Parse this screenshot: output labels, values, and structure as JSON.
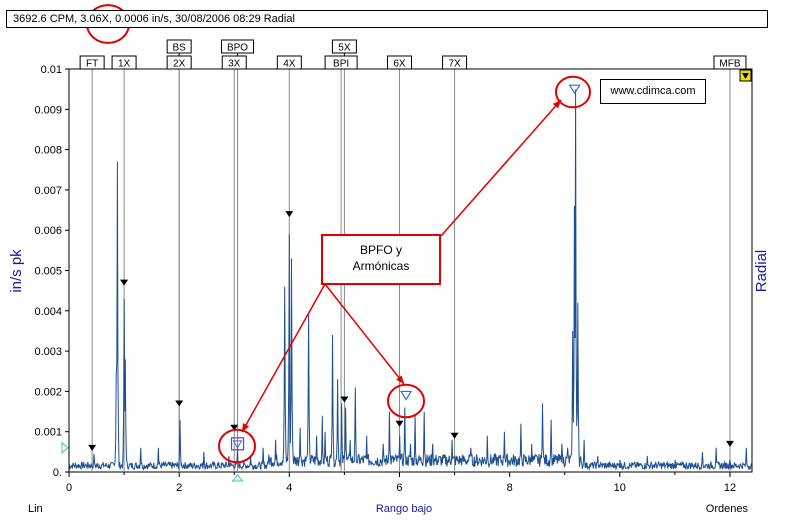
{
  "header": {
    "readout": "3692.6 CPM, 3.06X, 0.0006 in/s, 30/08/2006 08:29  Radial"
  },
  "watermark": "www.cdimca.com",
  "callout": {
    "line1": "BPFO y",
    "line2": "Armónicas"
  },
  "corner_labels": {
    "scale": "Lin",
    "x_unit": "Ordenes"
  },
  "colors": {
    "spectrum": "#1f4f8f",
    "axis_title": "#1a1aa0",
    "annotation": "#e00000",
    "marker_line": "#888888",
    "background": "#ffffff"
  },
  "chart_data": {
    "type": "line",
    "title": "",
    "xlabel": "Rango bajo",
    "ylabel": "in/s pk",
    "right_label": "Radial",
    "xlim": [
      0,
      12.4
    ],
    "ylim": [
      0,
      0.01
    ],
    "x_ticks": [
      "0",
      "2",
      "4",
      "6",
      "8",
      "10",
      "12"
    ],
    "y_ticks": [
      "0.",
      "0.001",
      "0.002",
      "0.003",
      "0.004",
      "0.005",
      "0.006",
      "0.007",
      "0.008",
      "0.009",
      "0.01"
    ],
    "y_tick_values": [
      0,
      0.001,
      0.002,
      0.003,
      0.004,
      0.005,
      0.006,
      0.007,
      0.008,
      0.009,
      0.01
    ],
    "order_markers": [
      {
        "label": "FT",
        "x": 0.42,
        "row": 1
      },
      {
        "label": "1X",
        "x": 1.0,
        "row": 1
      },
      {
        "label": "BS",
        "x": 2.0,
        "row": 0
      },
      {
        "label": "2X",
        "x": 2.0,
        "row": 1
      },
      {
        "label": "BPO",
        "x": 3.06,
        "row": 0
      },
      {
        "label": "3X",
        "x": 3.0,
        "row": 1
      },
      {
        "label": "4X",
        "x": 4.0,
        "row": 1
      },
      {
        "label": "5X",
        "x": 5.0,
        "row": 0
      },
      {
        "label": "BPI",
        "x": 4.94,
        "row": 1
      },
      {
        "label": "6X",
        "x": 6.0,
        "row": 1
      },
      {
        "label": "7X",
        "x": 7.0,
        "row": 1
      },
      {
        "label": "MFB",
        "x": 12.0,
        "row": 1
      }
    ],
    "peaks": [
      {
        "x": 0.88,
        "y": 0.0077
      },
      {
        "x": 0.86,
        "y": 0.0024
      },
      {
        "x": 1.0,
        "y": 0.0043
      },
      {
        "x": 1.02,
        "y": 0.0028
      },
      {
        "x": 0.45,
        "y": 0.00045
      },
      {
        "x": 1.3,
        "y": 0.0006
      },
      {
        "x": 1.62,
        "y": 0.0006
      },
      {
        "x": 2.02,
        "y": 0.0013
      },
      {
        "x": 2.45,
        "y": 0.0005
      },
      {
        "x": 2.9,
        "y": 0.0004
      },
      {
        "x": 3.06,
        "y": 0.0006
      },
      {
        "x": 3.3,
        "y": 0.0004
      },
      {
        "x": 3.52,
        "y": 0.0006
      },
      {
        "x": 3.75,
        "y": 0.0008
      },
      {
        "x": 3.92,
        "y": 0.0046
      },
      {
        "x": 4.0,
        "y": 0.0059
      },
      {
        "x": 4.04,
        "y": 0.0053
      },
      {
        "x": 4.2,
        "y": 0.0011
      },
      {
        "x": 4.35,
        "y": 0.0039
      },
      {
        "x": 4.5,
        "y": 0.0009
      },
      {
        "x": 4.6,
        "y": 0.0014
      },
      {
        "x": 4.65,
        "y": 0.001
      },
      {
        "x": 4.78,
        "y": 0.0034
      },
      {
        "x": 4.88,
        "y": 0.0023
      },
      {
        "x": 4.95,
        "y": 0.0017
      },
      {
        "x": 5.02,
        "y": 0.0016
      },
      {
        "x": 5.1,
        "y": 0.0008
      },
      {
        "x": 5.2,
        "y": 0.0021
      },
      {
        "x": 5.4,
        "y": 0.0009
      },
      {
        "x": 5.7,
        "y": 0.0007
      },
      {
        "x": 5.82,
        "y": 0.0015
      },
      {
        "x": 6.0,
        "y": 0.0009
      },
      {
        "x": 6.1,
        "y": 0.0016
      },
      {
        "x": 6.2,
        "y": 0.0007
      },
      {
        "x": 6.28,
        "y": 0.0014
      },
      {
        "x": 6.45,
        "y": 0.0015
      },
      {
        "x": 6.6,
        "y": 0.0007
      },
      {
        "x": 6.95,
        "y": 0.0008
      },
      {
        "x": 7.3,
        "y": 0.0006
      },
      {
        "x": 7.6,
        "y": 0.0009
      },
      {
        "x": 7.9,
        "y": 0.001
      },
      {
        "x": 8.2,
        "y": 0.0012
      },
      {
        "x": 8.4,
        "y": 0.0007
      },
      {
        "x": 8.6,
        "y": 0.0017
      },
      {
        "x": 8.75,
        "y": 0.0013
      },
      {
        "x": 8.95,
        "y": 0.0007
      },
      {
        "x": 9.05,
        "y": 0.0006
      },
      {
        "x": 9.15,
        "y": 0.0035
      },
      {
        "x": 9.18,
        "y": 0.0066
      },
      {
        "x": 9.2,
        "y": 0.0095
      },
      {
        "x": 9.24,
        "y": 0.0042
      },
      {
        "x": 9.35,
        "y": 0.0008
      },
      {
        "x": 9.6,
        "y": 0.0004
      },
      {
        "x": 10.0,
        "y": 0.0003
      },
      {
        "x": 10.5,
        "y": 0.0004
      },
      {
        "x": 11.0,
        "y": 0.0003
      },
      {
        "x": 11.5,
        "y": 0.0005
      },
      {
        "x": 11.75,
        "y": 0.0006
      },
      {
        "x": 12.0,
        "y": 0.0003
      },
      {
        "x": 12.3,
        "y": 0.0006
      }
    ],
    "noise_floor": 0.0002,
    "fault_marks": [
      {
        "x": 0.42,
        "y": 0.0004
      },
      {
        "x": 1.0,
        "y": 0.0045
      },
      {
        "x": 2.0,
        "y": 0.0015
      },
      {
        "x": 3.0,
        "y": 0.0009
      },
      {
        "x": 4.0,
        "y": 0.0062
      },
      {
        "x": 5.0,
        "y": 0.0016
      },
      {
        "x": 6.0,
        "y": 0.001
      },
      {
        "x": 7.0,
        "y": 0.0007
      },
      {
        "x": 12.0,
        "y": 0.0005
      }
    ],
    "cursors": [
      {
        "x": 3.06,
        "y": 0.0006,
        "symbol": "box"
      },
      {
        "x": 6.12,
        "y": 0.0018,
        "symbol": "triangle"
      },
      {
        "x": 9.18,
        "y": 0.0094,
        "symbol": "triangle"
      }
    ]
  }
}
